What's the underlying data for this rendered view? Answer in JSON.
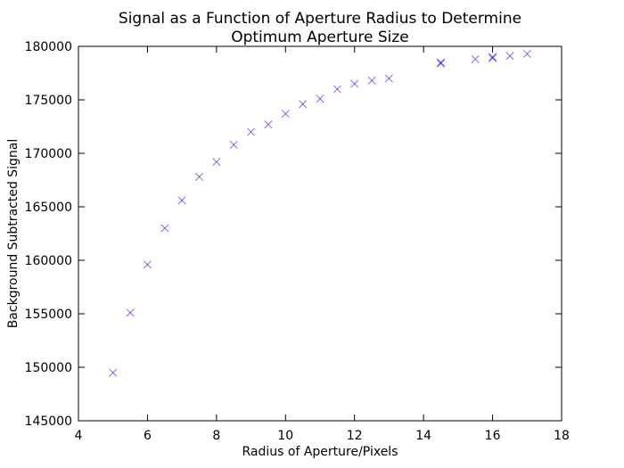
{
  "chart_data": {
    "type": "scatter",
    "title": "Signal as a Function of Aperture Radius to Determine",
    "title_line2": "Optimum Aperture Size",
    "xlabel": "Radius of Aperture/Pixels",
    "ylabel": "Background Subtracted Signal",
    "xlim": [
      4,
      18
    ],
    "ylim": [
      145000,
      180000
    ],
    "xticks": [
      "4",
      "6",
      "8",
      "10",
      "12",
      "14",
      "16",
      "18"
    ],
    "yticks": [
      "145000",
      "150000",
      "155000",
      "160000",
      "165000",
      "170000",
      "175000",
      "180000"
    ],
    "grid": false,
    "marker": "x",
    "marker_color": "#0000ff",
    "series": [
      {
        "x": [
          5,
          5.5,
          6,
          6.5,
          7,
          7.5,
          8,
          8.5,
          9,
          9.5,
          10,
          10.5,
          11,
          11.5,
          12,
          12.5,
          13,
          14.5,
          14.5,
          15.5,
          16,
          16,
          16.5,
          17
        ],
        "y": [
          149500,
          155100,
          159600,
          163000,
          165600,
          167800,
          169200,
          170800,
          172000,
          172700,
          173700,
          174600,
          175100,
          176000,
          176500,
          176800,
          177000,
          178400,
          178500,
          178800,
          178900,
          179000,
          179100,
          179300
        ]
      }
    ]
  }
}
